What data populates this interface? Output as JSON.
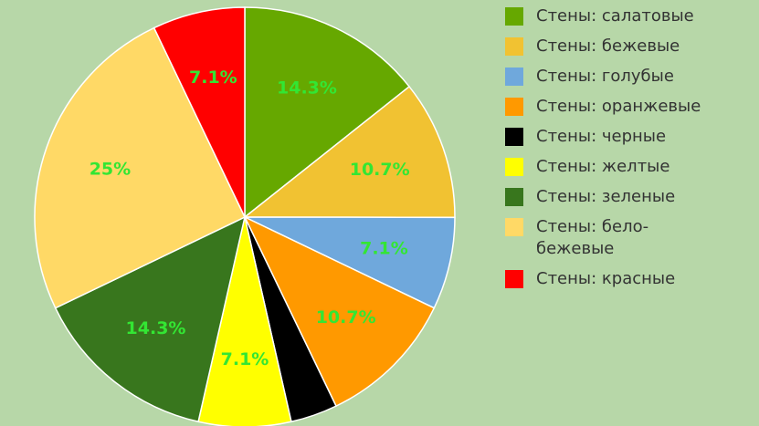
{
  "chart_data": {
    "type": "pie",
    "categories": [
      "Стены: салатовые",
      "Стены: бежевые",
      "Стены: голубые",
      "Стены: оранжевые",
      "Стены: черные",
      "Стены: желтые",
      "Стены: зеленые",
      "Стены: бело-бежевые",
      "Стены: красные"
    ],
    "values": [
      14.3,
      10.7,
      7.1,
      10.7,
      3.6,
      7.1,
      14.3,
      25,
      7.1
    ],
    "value_labels": [
      "14.3%",
      "10.7%",
      "7.1%",
      "10.7%",
      null,
      "7.1%",
      "14.3%",
      "25%",
      "7.1%"
    ],
    "colors": [
      "#66a800",
      "#f1c232",
      "#6fa8dc",
      "#ff9900",
      "#000000",
      "#ffff00",
      "#38761d",
      "#ffd966",
      "#ff0000"
    ],
    "label_color": "#33e633",
    "legend": "right"
  }
}
